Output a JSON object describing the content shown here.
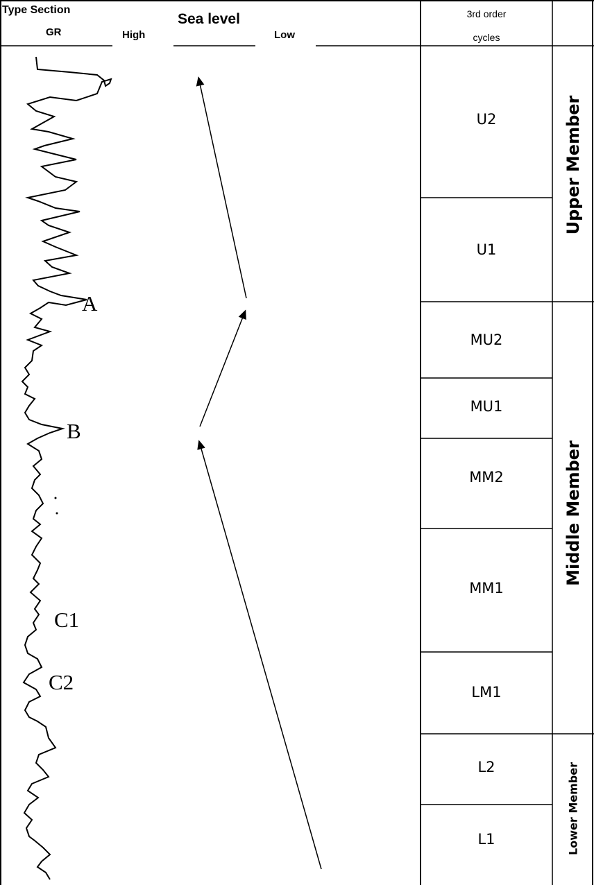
{
  "header": {
    "type_section": "Type Section",
    "gr": "GR",
    "high": "High",
    "sea_level": "Sea level",
    "low": "Low",
    "cycles_line1": "3rd order",
    "cycles_line2": "cycles"
  },
  "markers": [
    "A",
    "B",
    "C1",
    "C2"
  ],
  "cycles": [
    "U2",
    "U1",
    "MU2",
    "MU1",
    "MM2",
    "MM1",
    "LM1",
    "L2",
    "L1"
  ],
  "members": [
    "Upper Member",
    "Middle Member",
    "Lower Member"
  ]
}
